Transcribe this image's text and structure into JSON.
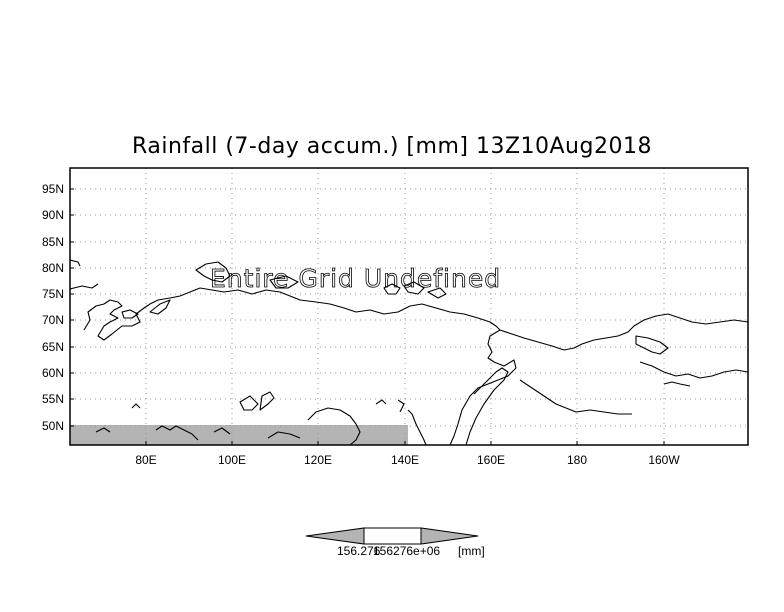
{
  "title": "Rainfall (7-day accum.) [mm] 13Z10Aug2018",
  "overlay_text": "Entire Grid Undefined",
  "lat_labels": [
    "95N",
    "90N",
    "85N",
    "80N",
    "75N",
    "70N",
    "65N",
    "60N",
    "55N",
    "50N"
  ],
  "lon_labels": [
    "80E",
    "100E",
    "120E",
    "140E",
    "160E",
    "180",
    "160W"
  ],
  "colorbar": {
    "value_label": "156.276",
    "value_label_2": "156276e+06",
    "unit_label": "[mm]"
  },
  "colors": {
    "undefined_fill": "#b4b4b4",
    "colorbar_side": "#b4b4b4",
    "grid": "#9a9a9a"
  }
}
